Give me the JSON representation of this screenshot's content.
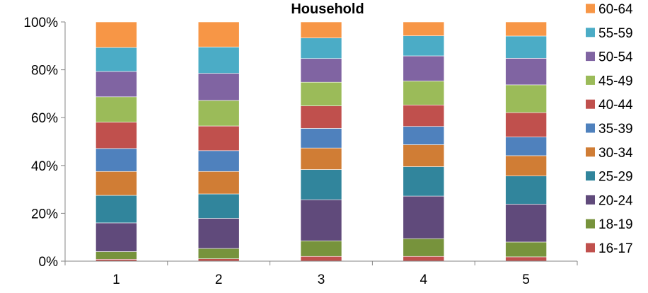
{
  "chart_data": {
    "type": "bar",
    "stacked": true,
    "percent_stacked": true,
    "title": "Household",
    "xlabel": "",
    "ylabel": "",
    "categories": [
      "1",
      "2",
      "3",
      "4",
      "5"
    ],
    "ylim": [
      0,
      100
    ],
    "y_ticks": [
      "0%",
      "20%",
      "40%",
      "60%",
      "80%",
      "100%"
    ],
    "y_tick_values": [
      0,
      20,
      40,
      60,
      80,
      100
    ],
    "grid": false,
    "legend_position": "right",
    "series": [
      {
        "name": "16-17",
        "color": "#c0504d",
        "values": [
          0.8,
          1.0,
          2.0,
          2.0,
          1.8
        ]
      },
      {
        "name": "18-19",
        "color": "#77933c",
        "values": [
          3.2,
          4.3,
          6.5,
          7.4,
          6.2
        ]
      },
      {
        "name": "20-24",
        "color": "#604a7b",
        "values": [
          12.0,
          12.6,
          17.2,
          17.8,
          15.8
        ]
      },
      {
        "name": "25-29",
        "color": "#31859c",
        "values": [
          11.5,
          10.2,
          12.6,
          12.3,
          11.8
        ]
      },
      {
        "name": "30-34",
        "color": "#d07d35",
        "values": [
          10.0,
          9.4,
          9.0,
          9.2,
          8.5
        ]
      },
      {
        "name": "35-39",
        "color": "#4f81bd",
        "values": [
          9.6,
          8.7,
          8.2,
          7.6,
          7.8
        ]
      },
      {
        "name": "40-44",
        "color": "#c0504d",
        "values": [
          11.0,
          10.3,
          9.4,
          9.0,
          10.2
        ]
      },
      {
        "name": "45-49",
        "color": "#9bbb59",
        "values": [
          10.6,
          10.7,
          9.9,
          10.0,
          11.6
        ]
      },
      {
        "name": "50-54",
        "color": "#8064a2",
        "values": [
          10.6,
          11.3,
          9.9,
          10.5,
          11.1
        ]
      },
      {
        "name": "55-59",
        "color": "#4bacc6",
        "values": [
          10.0,
          11.0,
          8.6,
          8.4,
          9.3
        ]
      },
      {
        "name": "60-64",
        "color": "#f79646",
        "values": [
          10.7,
          10.5,
          6.7,
          5.8,
          5.9
        ]
      }
    ]
  }
}
